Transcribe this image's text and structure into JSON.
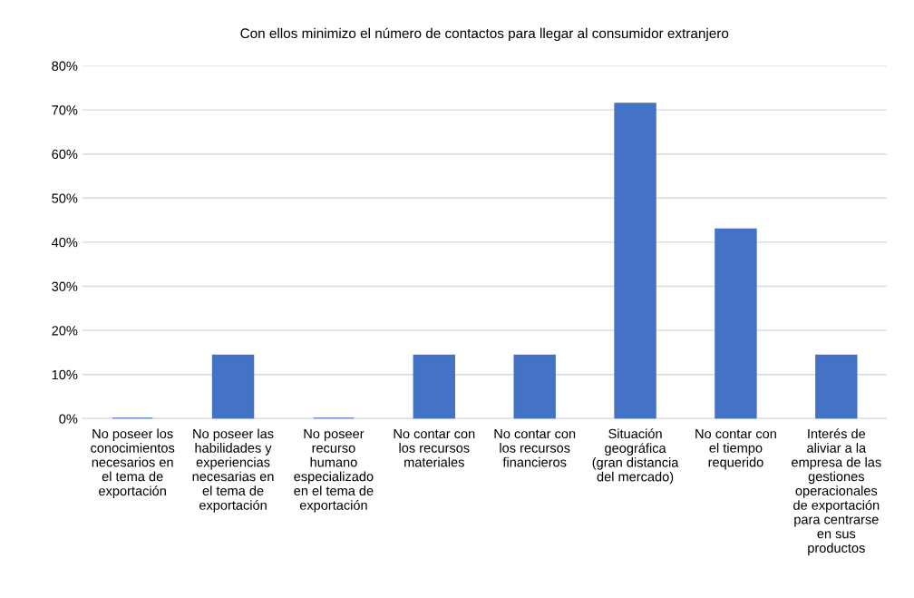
{
  "chart_data": {
    "type": "bar",
    "title": "Con ellos minimizo el número de contactos para llegar al consumidor extranjero",
    "categories": [
      "No poseer los\nconocimientos\nnecesarios en\nel tema de\nexportación",
      "No poseer las\nhabilidades y\nexperiencias\nnecesarias en\nel tema de\nexportación",
      "No poseer\nrecurso\nhumano\nespecializado\nen el tema de\nexportación",
      "No contar con\nlos recursos\nmateriales",
      "No contar con\nlos recursos\nfinancieros",
      "Situación\ngeográfica\n(gran distancia\ndel mercado)",
      "No contar con\nel tiempo\nrequerido",
      "Interés de\naliviar a la\nempresa de las\ngestiones\noperacionales\nde exportación\npara centrarse\nen sus\nproductos"
    ],
    "values": [
      0,
      14.3,
      0,
      14.3,
      14.3,
      71.4,
      42.9,
      14.3
    ],
    "color": "#4472c4",
    "ylim": [
      0,
      80
    ],
    "yticks": [
      {
        "value": 0,
        "label": "0%"
      },
      {
        "value": 10,
        "label": "10%"
      },
      {
        "value": 20,
        "label": "20%"
      },
      {
        "value": 30,
        "label": "30%"
      },
      {
        "value": 40,
        "label": "40%"
      },
      {
        "value": 50,
        "label": "50%"
      },
      {
        "value": 60,
        "label": "60%"
      },
      {
        "value": 70,
        "label": "70%"
      },
      {
        "value": 80,
        "label": "80%"
      }
    ],
    "grid": "y"
  }
}
